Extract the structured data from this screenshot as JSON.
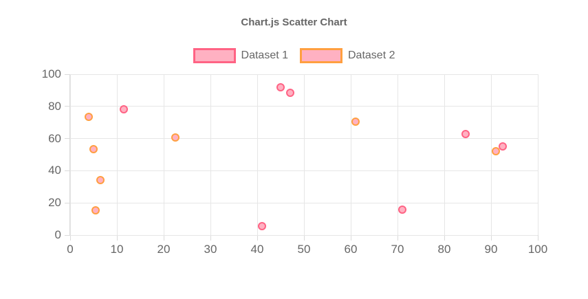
{
  "chart_data": {
    "type": "scatter",
    "title": "Chart.js Scatter Chart",
    "xlabel": "",
    "ylabel": "",
    "xlim": [
      0,
      100
    ],
    "ylim": [
      0,
      100
    ],
    "xticks": [
      0,
      10,
      20,
      30,
      40,
      50,
      60,
      70,
      80,
      90,
      100
    ],
    "yticks": [
      0,
      20,
      40,
      60,
      80,
      100
    ],
    "grid": true,
    "legend_position": "top",
    "colors": {
      "text": "#666666",
      "gridline": "#e6e6e6",
      "axis_border": "#dadada",
      "point_fill": "#FFB1C2",
      "dataset1_border": "#FF6384",
      "dataset2_border": "#FF9F40"
    },
    "series": [
      {
        "name": "Dataset 1",
        "border_color": "#FF6384",
        "fill_color": "#FFB1C2",
        "points": [
          {
            "x": 11.5,
            "y": 78
          },
          {
            "x": 41,
            "y": 5.5
          },
          {
            "x": 45,
            "y": 92
          },
          {
            "x": 47,
            "y": 88.5
          },
          {
            "x": 71,
            "y": 16
          },
          {
            "x": 84.5,
            "y": 63
          },
          {
            "x": 92.5,
            "y": 55
          }
        ]
      },
      {
        "name": "Dataset 2",
        "border_color": "#FF9F40",
        "fill_color": "#FFB1C2",
        "points": [
          {
            "x": 4,
            "y": 73.5
          },
          {
            "x": 5,
            "y": 53.5
          },
          {
            "x": 5.5,
            "y": 15.5
          },
          {
            "x": 6.5,
            "y": 34
          },
          {
            "x": 22.5,
            "y": 60.5
          },
          {
            "x": 61,
            "y": 70.5
          },
          {
            "x": 91,
            "y": 52
          }
        ]
      }
    ]
  }
}
